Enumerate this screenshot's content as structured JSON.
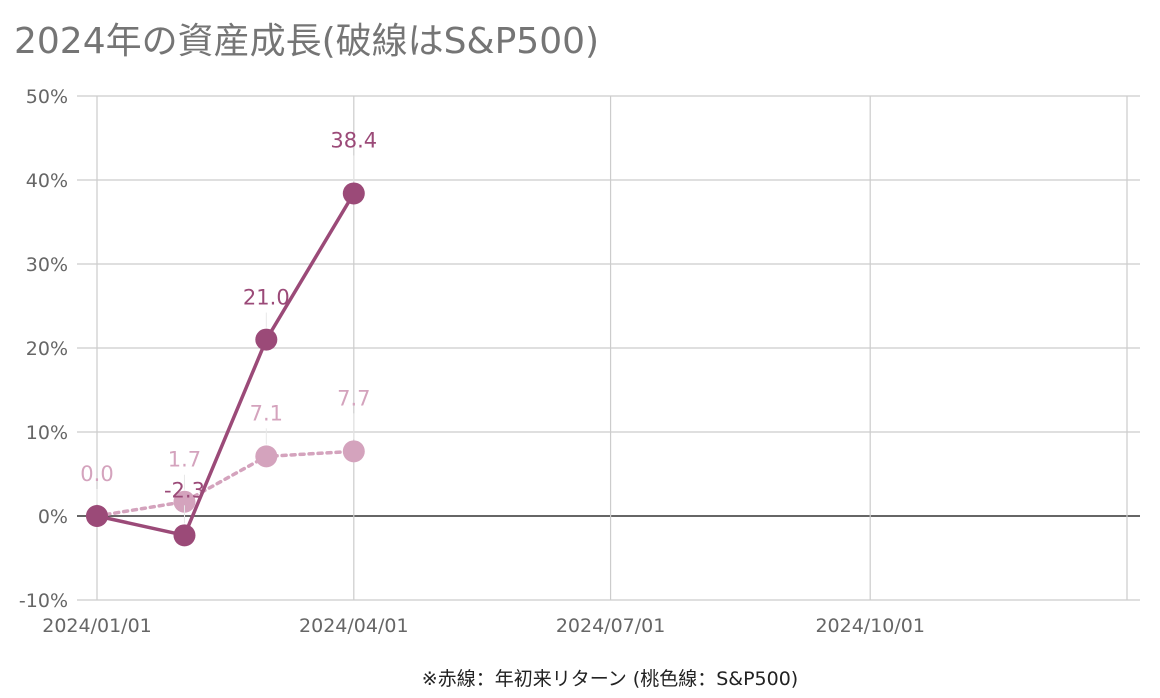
{
  "chart_data": {
    "type": "line",
    "title": "2024年の資産成長(破線はS&P500)",
    "footnote": "※赤線：年初来リターン (桃色線：S&P500)",
    "x": [
      "2024/01/01",
      "2024/02/01",
      "2024/03/01",
      "2024/04/01"
    ],
    "x_ticks": [
      "2024/01/01",
      "2024/04/01",
      "2024/07/01",
      "2024/10/01"
    ],
    "xlim": [
      "2024/01/01",
      "2024/12/31"
    ],
    "ylim": [
      -10,
      50
    ],
    "y_ticks": [
      "50%",
      "40%",
      "30%",
      "20%",
      "10%",
      "0%",
      "-10%"
    ],
    "grid": true,
    "series": [
      {
        "values": [
          0,
          -2.3,
          21.0,
          38.4
        ],
        "labels": [
          "",
          "-2.3",
          "21.0",
          "38.4"
        ],
        "color": "#9b4a78",
        "style": "solid"
      },
      {
        "values": [
          0,
          1.7,
          7.1,
          7.7
        ],
        "labels": [
          "0.0",
          "1.7",
          "7.1",
          "7.7"
        ],
        "color": "#d4a3bd",
        "style": "dotted"
      }
    ]
  }
}
